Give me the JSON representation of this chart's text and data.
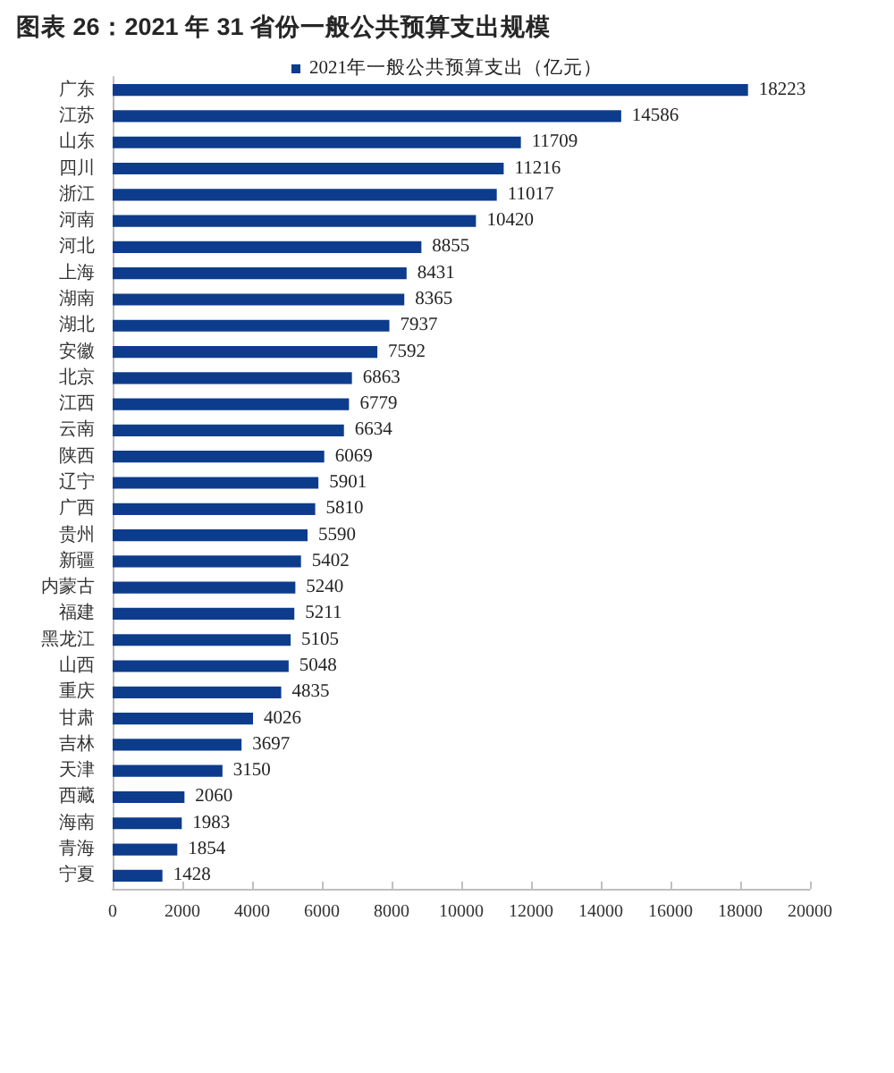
{
  "chart_data": {
    "type": "bar",
    "orientation": "horizontal",
    "title": "图表 26：2021 年 31 省份一般公共预算支出规模",
    "categories": [
      "广东",
      "江苏",
      "山东",
      "四川",
      "浙江",
      "河南",
      "河北",
      "上海",
      "湖南",
      "湖北",
      "安徽",
      "北京",
      "江西",
      "云南",
      "陕西",
      "辽宁",
      "广西",
      "贵州",
      "新疆",
      "内蒙古",
      "福建",
      "黑龙江",
      "山西",
      "重庆",
      "甘肃",
      "吉林",
      "天津",
      "西藏",
      "海南",
      "青海",
      "宁夏"
    ],
    "series": [
      {
        "name": "2021年一般公共预算支出（亿元）",
        "color": "#0d3c8c",
        "values": [
          18223,
          14586,
          11709,
          11216,
          11017,
          10420,
          8855,
          8431,
          8365,
          7937,
          7592,
          6863,
          6779,
          6634,
          6069,
          5901,
          5810,
          5590,
          5402,
          5240,
          5211,
          5105,
          5048,
          4835,
          4026,
          3697,
          3150,
          2060,
          1983,
          1854,
          1428
        ]
      }
    ],
    "xlim": [
      0,
      20000
    ],
    "xticks": [
      0,
      2000,
      4000,
      6000,
      8000,
      10000,
      12000,
      14000,
      16000,
      18000,
      20000
    ],
    "data_labels": true,
    "grid": false,
    "legend": "top"
  }
}
